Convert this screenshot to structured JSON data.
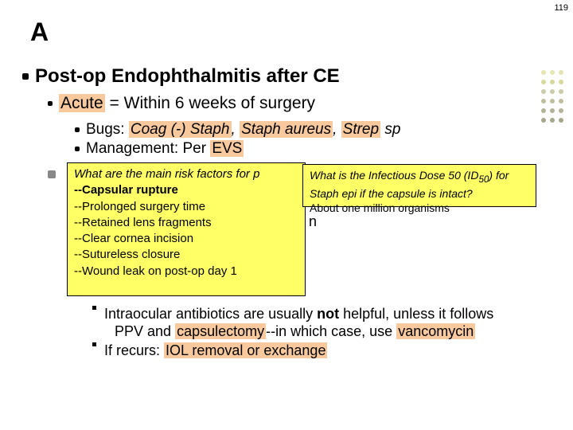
{
  "pageNumber": "119",
  "slideLetter": "A",
  "heading": "Post-op Endophthalmitis after CE",
  "sub1_prefix": "Acute",
  "sub1_rest": " = Within 6 weeks of surgery",
  "bugs_label": "Bugs: ",
  "bugs_hl1": "Coag (-) Staph",
  "bugs_sep1": ", ",
  "bugs_hl2": "Staph aureus",
  "bugs_sep2": ", ",
  "bugs_hl3": "Strep",
  "bugs_sp": " sp",
  "mgmt_label": "Management: Per ",
  "mgmt_hl": "EVS",
  "hiddenBehind": "n",
  "flashLeft": {
    "q": "What are the main risk factors for p",
    "a1": "--Capsular rupture",
    "a2": "--Prolonged surgery time",
    "a3": "--Retained lens fragments",
    "a4": "--Clear cornea incision",
    "a5": "--Sutureless closure",
    "a6": "--Wound leak on post-op day 1"
  },
  "flashRight": {
    "l1_a": "What is the Infectious Dose 50 (ID",
    "l1_sub": "50",
    "l1_b": ") for",
    "l2": "Staph epi if the capsule is intact?",
    "l3": "About one million organisms"
  },
  "tail": {
    "r1a": "Intraocular antibiotics are usually ",
    "r1b": "not",
    "r1c": " helpful, unless it follows",
    "r2a": "PPV and ",
    "r2b": "capsulectomy",
    "r2c": "--in which case, use ",
    "r2d": "vancomycin",
    "r3a": "If recurs: ",
    "r3b": "IOL removal or exchange"
  },
  "dotColors": [
    "#e6e6b3",
    "#e6e6b3",
    "#e6e6b3",
    "#d9d99e",
    "#d9d99e",
    "#d9d99e",
    "#ccccaa",
    "#ccccaa",
    "#ccccaa",
    "#bfbfa0",
    "#bfbfa0",
    "#bfbfa0",
    "#b3b399",
    "#b3b399",
    "#b3b399",
    "#a6a68c",
    "#a6a68c",
    "#a6a68c"
  ]
}
